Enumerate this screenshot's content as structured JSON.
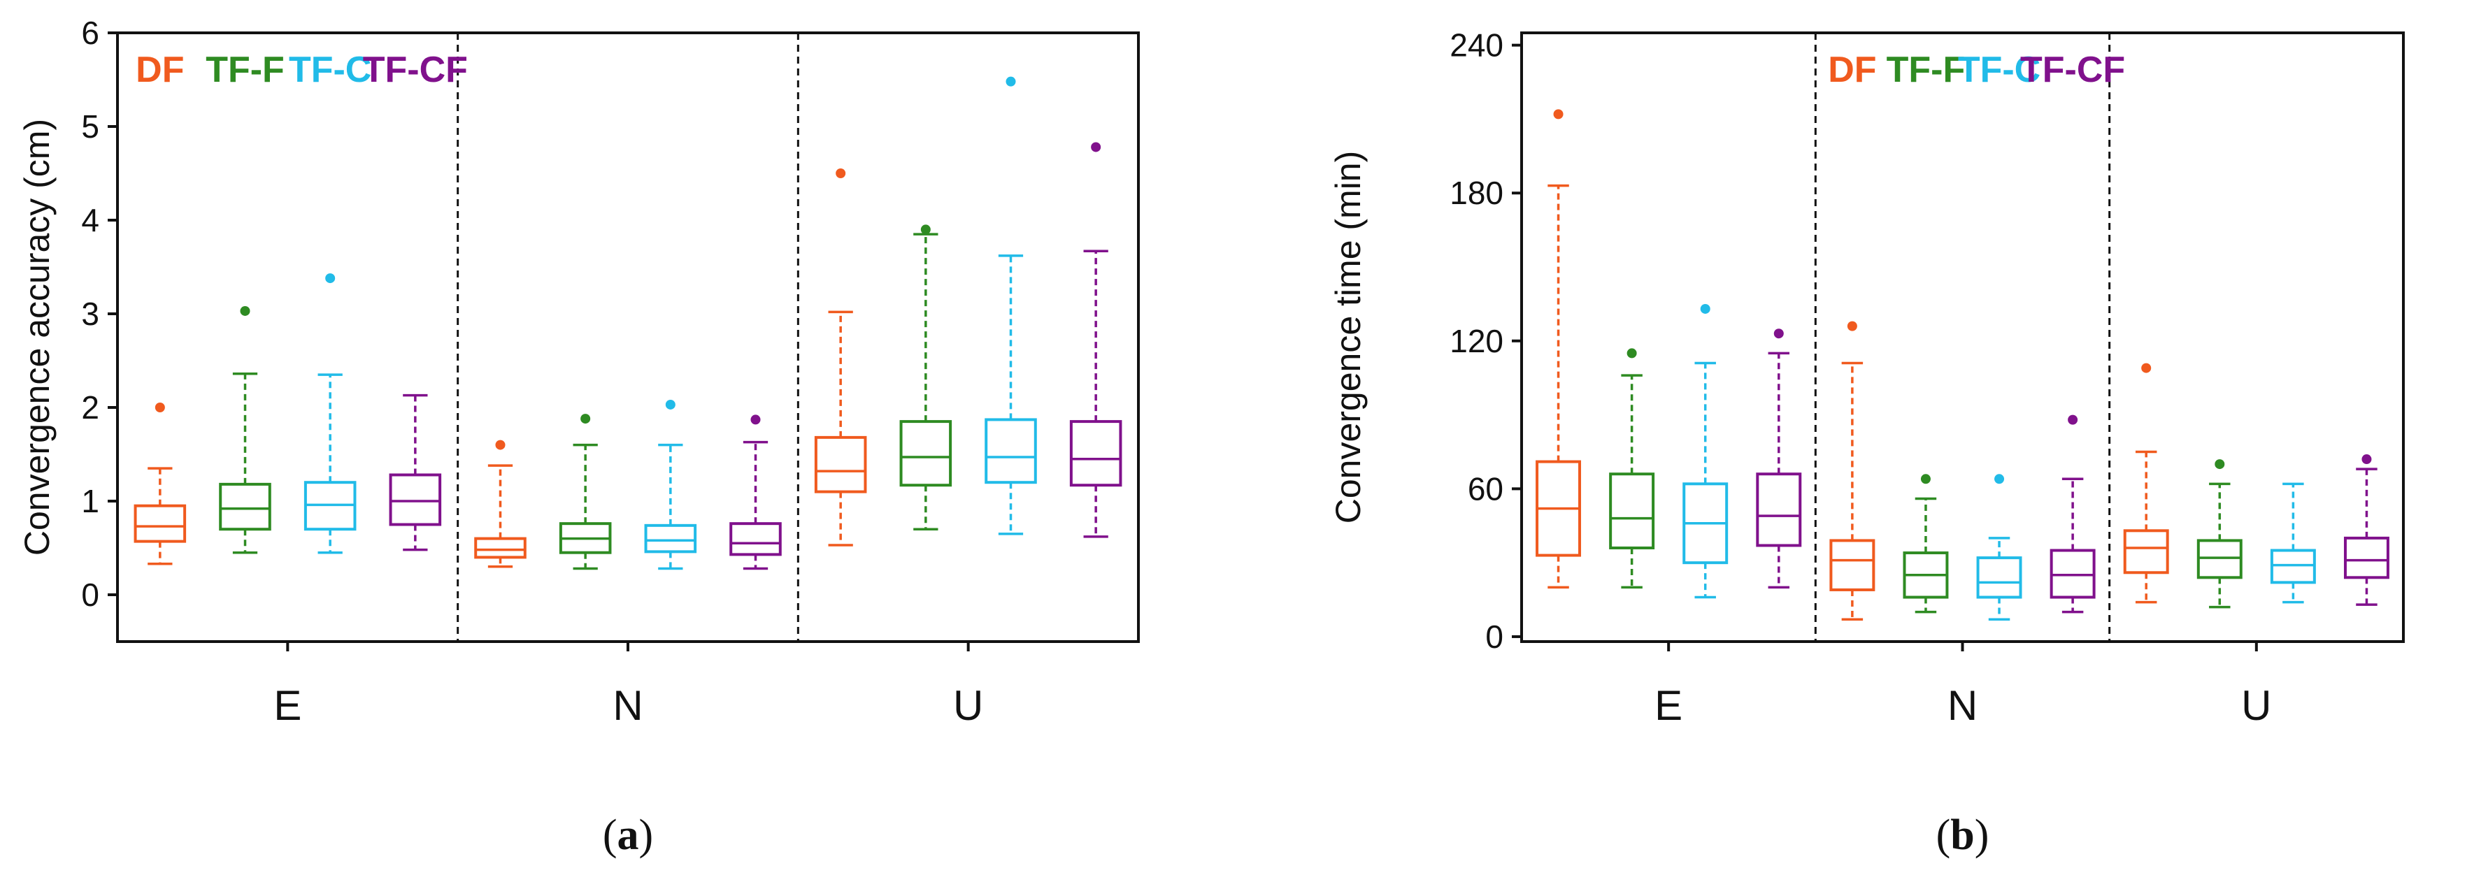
{
  "chart_data": [
    {
      "type": "boxplot",
      "panel_label_open": "(",
      "panel_label_letter": "a",
      "panel_label_close": ")",
      "ylabel": "Convergence accuracy (cm)",
      "ylim": [
        -0.5,
        6
      ],
      "yticks": [
        0,
        1,
        2,
        3,
        4,
        5,
        6
      ],
      "categories": [
        "E",
        "N",
        "U"
      ],
      "series_names": [
        "DF",
        "TF-F",
        "TF-C",
        "TF-CF"
      ],
      "series_colors": [
        "#f05a1e",
        "#2e8b22",
        "#21bbe8",
        "#80118c"
      ],
      "legend_in_group": 0,
      "boxes": [
        [
          {
            "whislo": 0.33,
            "q1": 0.57,
            "med": 0.73,
            "q3": 0.95,
            "whishi": 1.35,
            "fliers": [
              2.0
            ]
          },
          {
            "whislo": 0.45,
            "q1": 0.7,
            "med": 0.92,
            "q3": 1.18,
            "whishi": 2.36,
            "fliers": [
              3.03
            ]
          },
          {
            "whislo": 0.45,
            "q1": 0.7,
            "med": 0.96,
            "q3": 1.2,
            "whishi": 2.35,
            "fliers": [
              3.38
            ]
          },
          {
            "whislo": 0.48,
            "q1": 0.75,
            "med": 1.0,
            "q3": 1.28,
            "whishi": 2.13,
            "fliers": []
          }
        ],
        [
          {
            "whislo": 0.3,
            "q1": 0.4,
            "med": 0.48,
            "q3": 0.6,
            "whishi": 1.38,
            "fliers": [
              1.6
            ]
          },
          {
            "whislo": 0.28,
            "q1": 0.45,
            "med": 0.6,
            "q3": 0.76,
            "whishi": 1.6,
            "fliers": [
              1.88
            ]
          },
          {
            "whislo": 0.28,
            "q1": 0.46,
            "med": 0.58,
            "q3": 0.74,
            "whishi": 1.6,
            "fliers": [
              2.03
            ]
          },
          {
            "whislo": 0.28,
            "q1": 0.43,
            "med": 0.55,
            "q3": 0.76,
            "whishi": 1.63,
            "fliers": [
              1.87
            ]
          }
        ],
        [
          {
            "whislo": 0.53,
            "q1": 1.1,
            "med": 1.32,
            "q3": 1.68,
            "whishi": 3.02,
            "fliers": [
              4.5
            ]
          },
          {
            "whislo": 0.7,
            "q1": 1.17,
            "med": 1.47,
            "q3": 1.85,
            "whishi": 3.85,
            "fliers": [
              3.9
            ]
          },
          {
            "whislo": 0.65,
            "q1": 1.2,
            "med": 1.47,
            "q3": 1.87,
            "whishi": 3.62,
            "fliers": [
              5.48
            ]
          },
          {
            "whislo": 0.62,
            "q1": 1.17,
            "med": 1.45,
            "q3": 1.85,
            "whishi": 3.67,
            "fliers": [
              4.78
            ]
          }
        ]
      ]
    },
    {
      "type": "boxplot",
      "panel_label_open": "(",
      "panel_label_letter": "b",
      "panel_label_close": ")",
      "ylabel": "Convergence time (min)",
      "ylim": [
        -2,
        245
      ],
      "yticks": [
        0,
        60,
        120,
        180,
        240
      ],
      "categories": [
        "E",
        "N",
        "U"
      ],
      "series_names": [
        "DF",
        "TF-F",
        "TF-C",
        "TF-CF"
      ],
      "series_colors": [
        "#f05a1e",
        "#2e8b22",
        "#21bbe8",
        "#80118c"
      ],
      "legend_in_group": 1,
      "boxes": [
        [
          {
            "whislo": 20,
            "q1": 33,
            "med": 52,
            "q3": 71,
            "whishi": 183,
            "fliers": [
              212
            ]
          },
          {
            "whislo": 20,
            "q1": 36,
            "med": 48,
            "q3": 66,
            "whishi": 106,
            "fliers": [
              115
            ]
          },
          {
            "whislo": 16,
            "q1": 30,
            "med": 46,
            "q3": 62,
            "whishi": 111,
            "fliers": [
              133
            ]
          },
          {
            "whislo": 20,
            "q1": 37,
            "med": 49,
            "q3": 66,
            "whishi": 115,
            "fliers": [
              123
            ]
          }
        ],
        [
          {
            "whislo": 7,
            "q1": 19,
            "med": 31,
            "q3": 39,
            "whishi": 111,
            "fliers": [
              126
            ]
          },
          {
            "whislo": 10,
            "q1": 16,
            "med": 25,
            "q3": 34,
            "whishi": 56,
            "fliers": [
              64
            ]
          },
          {
            "whislo": 7,
            "q1": 16,
            "med": 22,
            "q3": 32,
            "whishi": 40,
            "fliers": [
              64
            ]
          },
          {
            "whislo": 10,
            "q1": 16,
            "med": 25,
            "q3": 35,
            "whishi": 64,
            "fliers": [
              88
            ]
          }
        ],
        [
          {
            "whislo": 14,
            "q1": 26,
            "med": 36,
            "q3": 43,
            "whishi": 75,
            "fliers": [
              109
            ]
          },
          {
            "whislo": 12,
            "q1": 24,
            "med": 32,
            "q3": 39,
            "whishi": 62,
            "fliers": [
              70
            ]
          },
          {
            "whislo": 14,
            "q1": 22,
            "med": 29,
            "q3": 35,
            "whishi": 62,
            "fliers": []
          },
          {
            "whislo": 13,
            "q1": 24,
            "med": 31,
            "q3": 40,
            "whishi": 68,
            "fliers": [
              72
            ]
          }
        ]
      ]
    }
  ]
}
